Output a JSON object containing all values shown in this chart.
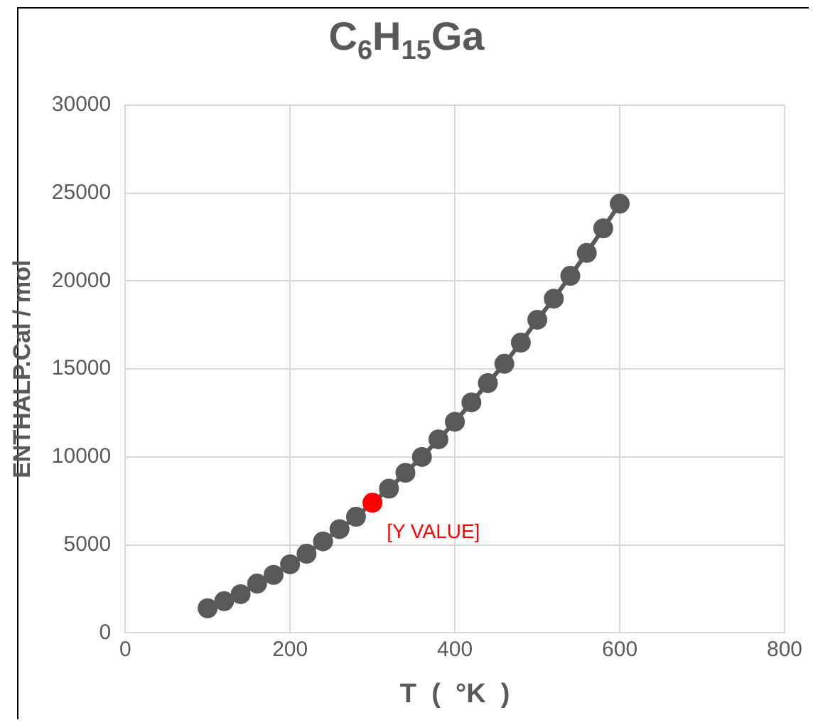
{
  "chart_data": {
    "type": "line",
    "title": "C$_{6}$H$_{15}$Ga",
    "xlabel": "T  (  °K  )",
    "ylabel": "ENTHALP.Cal / mol",
    "x": [
      100,
      120,
      140,
      160,
      180,
      200,
      220,
      240,
      260,
      280,
      300,
      320,
      340,
      360,
      380,
      400,
      420,
      440,
      460,
      480,
      500,
      520,
      540,
      560,
      580,
      600
    ],
    "series": [
      {
        "color": "#595959",
        "colors": [
          "#595959",
          "#595959",
          "#595959",
          "#595959",
          "#595959",
          "#595959",
          "#595959",
          "#595959",
          "#595959",
          "#595959",
          "#ff0000",
          "#595959",
          "#595959",
          "#595959",
          "#595959",
          "#595959",
          "#595959",
          "#595959",
          "#595959",
          "#595959",
          "#595959",
          "#595959",
          "#595959",
          "#595959",
          "#595959",
          "#595959"
        ],
        "values": [
          1400,
          1800,
          2200,
          2800,
          3300,
          3900,
          4500,
          5200,
          5900,
          6600,
          7400,
          8200,
          9100,
          10000,
          11000,
          12000,
          13100,
          14200,
          15300,
          16500,
          17800,
          19000,
          20300,
          21600,
          23000,
          24400
        ]
      }
    ],
    "annotations": [
      {
        "text": "[Y VALUE]",
        "x": 300,
        "y": 7400
      }
    ],
    "xlim": [
      0,
      800
    ],
    "xticks": [
      0,
      200,
      400,
      600,
      800
    ],
    "ylim": [
      0,
      30000
    ],
    "yticks": [
      0,
      5000,
      10000,
      15000,
      20000,
      25000,
      30000
    ],
    "grid": true,
    "legend": false,
    "marker": "circle",
    "line_style": "solid"
  }
}
